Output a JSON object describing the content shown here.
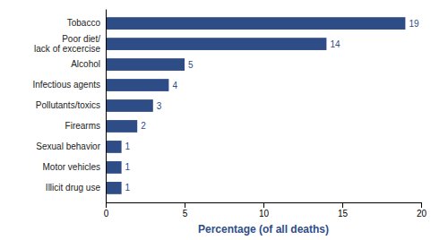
{
  "chart_data": {
    "type": "bar",
    "orientation": "horizontal",
    "categories": [
      "Illicit drug use",
      "Motor vehicles",
      "Sexual behavior",
      "Firearms",
      "Pollutants/toxics",
      "Infectious agents",
      "Alcohol",
      "Poor diet/\nlack of excercise",
      "Tobacco"
    ],
    "values": [
      1,
      1,
      1,
      2,
      3,
      4,
      5,
      14,
      19
    ],
    "color": "#2e4d87",
    "xlabel": "Percentage (of all deaths)",
    "xlim": [
      0,
      20
    ],
    "xticks": [
      0,
      5,
      10,
      15,
      20
    ],
    "data_labels": true,
    "grid": false
  }
}
